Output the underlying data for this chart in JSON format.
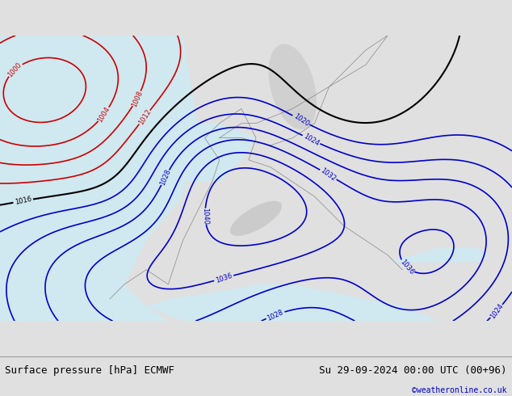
{
  "title_left": "Surface pressure [hPa] ECMWF",
  "title_right": "Su 29-09-2024 00:00 UTC (00+96)",
  "copyright": "©weatheronline.co.uk",
  "copyright_color": "#0000cc",
  "bg_color": "#e8f4e8",
  "ocean_color": "#d0e8f0",
  "land_color": "#c8e8c0",
  "bottom_bar_color": "#e0e0e0",
  "text_color": "#000000",
  "contour_low_color": "#cc0000",
  "contour_high_color": "#0000cc",
  "contour_black_color": "#000000",
  "contour_interval": 4,
  "font_size_title": 9,
  "font_size_labels": 7
}
